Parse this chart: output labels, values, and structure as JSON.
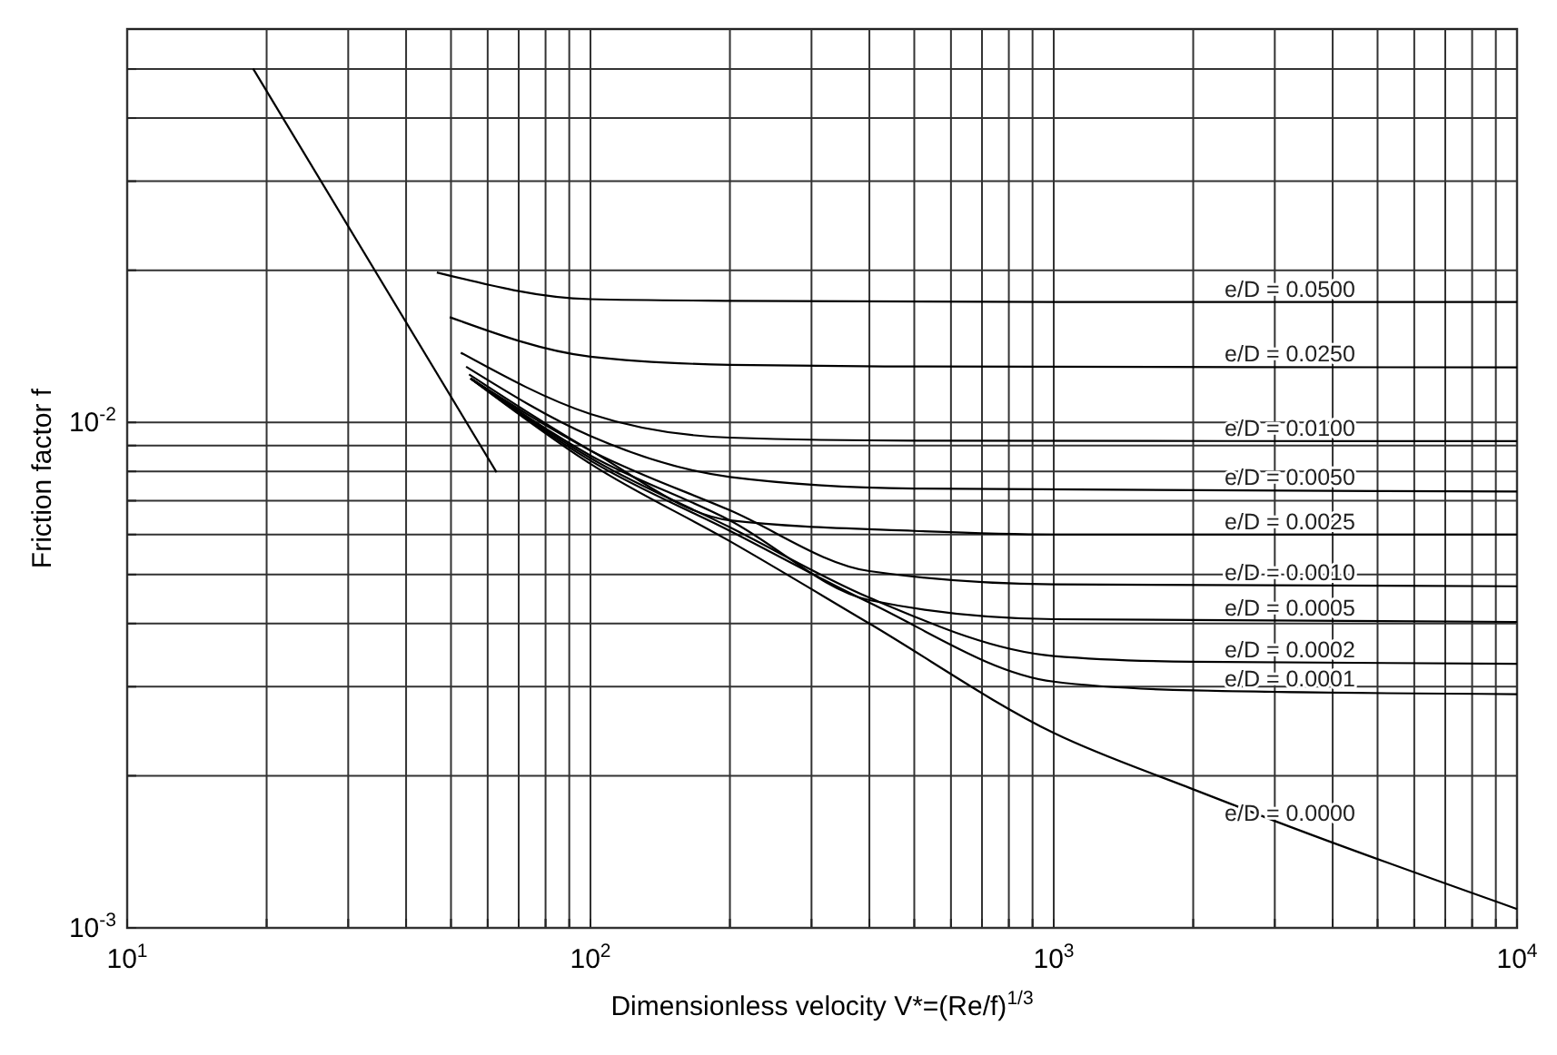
{
  "chart_data": {
    "type": "line",
    "xlabel": "Dimensionless velocity  V*=(Re/f)$^{1/3}$",
    "ylabel": "Friction factor  f",
    "log": "xy",
    "grid": true,
    "marker": "none",
    "line_style": "solid",
    "xlim": [
      10,
      10000
    ],
    "ylim": [
      0.001,
      0.06
    ],
    "xticks": [
      {
        "value": 10,
        "label": "10$^{1}$"
      },
      {
        "value": 20,
        "label": null
      },
      {
        "value": 30,
        "label": null
      },
      {
        "value": 40,
        "label": null
      },
      {
        "value": 50,
        "label": null
      },
      {
        "value": 60,
        "label": null
      },
      {
        "value": 70,
        "label": null
      },
      {
        "value": 80,
        "label": null
      },
      {
        "value": 90,
        "label": null
      },
      {
        "value": 100,
        "label": "10$^{2}$"
      },
      {
        "value": 200,
        "label": null
      },
      {
        "value": 300,
        "label": null
      },
      {
        "value": 400,
        "label": null
      },
      {
        "value": 500,
        "label": null
      },
      {
        "value": 600,
        "label": null
      },
      {
        "value": 700,
        "label": null
      },
      {
        "value": 800,
        "label": null
      },
      {
        "value": 900,
        "label": null
      },
      {
        "value": 1000,
        "label": "10$^{3}$"
      },
      {
        "value": 2000,
        "label": null
      },
      {
        "value": 3000,
        "label": null
      },
      {
        "value": 4000,
        "label": null
      },
      {
        "value": 5000,
        "label": null
      },
      {
        "value": 6000,
        "label": null
      },
      {
        "value": 7000,
        "label": null
      },
      {
        "value": 8000,
        "label": null
      },
      {
        "value": 9000,
        "label": null
      },
      {
        "value": 10000,
        "label": "10$^{4}$"
      }
    ],
    "yticks": [
      {
        "value": 0.001,
        "label": "10$^{-3}$"
      },
      {
        "value": 0.002,
        "label": null
      },
      {
        "value": 0.003,
        "label": null
      },
      {
        "value": 0.004,
        "label": null
      },
      {
        "value": 0.005,
        "label": null
      },
      {
        "value": 0.006,
        "label": null
      },
      {
        "value": 0.007,
        "label": null
      },
      {
        "value": 0.008,
        "label": null
      },
      {
        "value": 0.009,
        "label": null
      },
      {
        "value": 0.01,
        "label": "10$^{-2}$"
      },
      {
        "value": 0.02,
        "label": null
      },
      {
        "value": 0.03,
        "label": null
      },
      {
        "value": 0.04,
        "label": null
      },
      {
        "value": 0.05,
        "label": null
      }
    ],
    "series": [
      {
        "color": "#000000",
        "x": [
          18.7,
          62.7
        ],
        "values": [
          0.0501,
          0.00797
        ]
      },
      {
        "name": "e/D = 0.0500",
        "color": "#000000",
        "x": [
          46.6,
          100,
          200,
          1000,
          10000
        ],
        "values": [
          0.0198,
          0.01753,
          0.0174,
          0.0173,
          0.0173
        ]
      },
      {
        "name": "e/D = 0.0250",
        "color": "#000000",
        "x": [
          49.7,
          100,
          200,
          500,
          10000
        ],
        "values": [
          0.01615,
          0.01349,
          0.013,
          0.0129,
          0.01285
        ]
      },
      {
        "name": "e/D = 0.0100",
        "color": "#000000",
        "x": [
          52.5,
          100,
          200,
          500,
          10000
        ],
        "values": [
          0.01374,
          0.01039,
          0.00933,
          0.0092,
          0.00918
        ]
      },
      {
        "name": "e/D = 0.0050",
        "color": "#000000",
        "x": [
          53.9,
          100,
          200,
          500,
          10000
        ],
        "values": [
          0.01289,
          0.0094,
          0.0078,
          0.0074,
          0.0073
        ]
      },
      {
        "name": "e/D = 0.0025",
        "color": "#000000",
        "x": [
          54.7,
          100,
          200,
          500,
          1000,
          10000
        ],
        "values": [
          0.01244,
          0.0088,
          0.0064,
          0.0061,
          0.006,
          0.006
        ]
      },
      {
        "name": "e/D = 0.0010",
        "color": "#000000",
        "x": [
          55.1,
          100,
          200,
          400,
          1000,
          10000
        ],
        "values": [
          0.01222,
          0.0088,
          0.0067,
          0.00508,
          0.00478,
          0.00474
        ]
      },
      {
        "name": "e/D = 0.0005",
        "color": "#000000",
        "x": [
          55.1,
          100,
          200,
          400,
          1000,
          10000
        ],
        "values": [
          0.01222,
          0.0086,
          0.0064,
          0.00445,
          0.00408,
          0.00403
        ]
      },
      {
        "name": "e/D = 0.0002",
        "color": "#000000",
        "x": [
          55.1,
          100,
          200,
          400,
          1000,
          2000,
          10000
        ],
        "values": [
          0.01222,
          0.0085,
          0.0062,
          0.0045,
          0.00345,
          0.00336,
          0.00333
        ]
      },
      {
        "name": "e/D = 0.0001",
        "color": "#000000",
        "x": [
          55.1,
          100,
          200,
          400,
          1000,
          2000,
          10000
        ],
        "values": [
          0.01222,
          0.0084,
          0.0061,
          0.0044,
          0.00307,
          0.00295,
          0.0029
        ]
      },
      {
        "name": "e/D = 0.0000",
        "color": "#000000",
        "x": [
          55.1,
          100,
          200,
          400,
          1000,
          2000,
          3040,
          10000
        ],
        "values": [
          0.01222,
          0.00828,
          0.00582,
          0.004,
          0.00243,
          0.00188,
          0.00162,
          0.00109
        ]
      }
    ]
  }
}
